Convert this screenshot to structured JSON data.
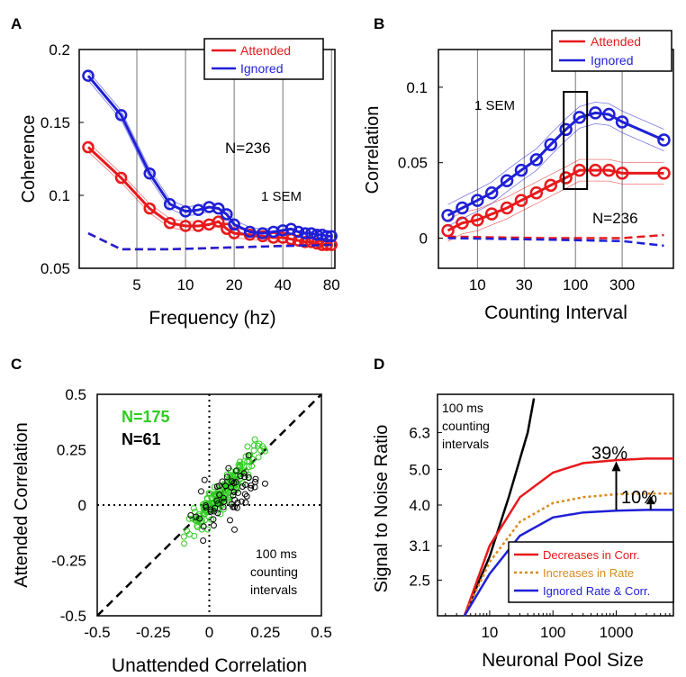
{
  "colors": {
    "attended": "#e8191c",
    "ignored": "#1f1fd6",
    "dashed_red": "#e8191c",
    "dashed_blue": "#1f1fd6",
    "green": "#2ecc1f",
    "orange": "#d98a1e",
    "black": "#000000"
  },
  "panels": {
    "A": {
      "letter": "A",
      "title": "",
      "xlabel": "Frequency (hz)",
      "ylabel": "Coherence",
      "annotation_n": "N=236",
      "annotation_sem": "1 SEM",
      "legend": [
        "Attended",
        "Ignored"
      ],
      "xticks": [
        "5",
        "10",
        "20",
        "40",
        "80"
      ],
      "yticks": [
        "0.05",
        "0.1",
        "0.15",
        "0.2"
      ]
    },
    "B": {
      "letter": "B",
      "xlabel": "Counting Interval",
      "ylabel": "Correlation",
      "annotation_n": "N=236",
      "annotation_sem": "1 SEM",
      "legend": [
        "Attended",
        "Ignored"
      ],
      "xticks": [
        "10",
        "30",
        "100",
        "300"
      ],
      "yticks": [
        "0",
        "0.05",
        "0.1"
      ]
    },
    "C": {
      "letter": "C",
      "xlabel": "Unattended Correlation",
      "ylabel": "Attended Correlation",
      "n_green": "N=175",
      "n_black": "N=61",
      "note_line1": "100 ms",
      "note_line2": "counting",
      "note_line3": "intervals",
      "xticks": [
        "-0.5",
        "-0.25",
        "0",
        "0.25",
        "0.5"
      ],
      "yticks": [
        "-0.5",
        "-0.25",
        "0",
        "0.25",
        "0.5"
      ]
    },
    "D": {
      "letter": "D",
      "xlabel": "Neuronal Pool Size",
      "ylabel": "Signal to Noise Ratio",
      "note_line1": "100 ms",
      "note_line2": "counting",
      "note_line3": "intervals",
      "pct1": "39%",
      "pct2": "10%",
      "legend": [
        "Decreases in Corr.",
        "Increases in Rate",
        "Ignored Rate & Corr."
      ],
      "xticks": [
        "10",
        "100",
        "1000"
      ],
      "yticks": [
        "2.5",
        "3.1",
        "4.0",
        "5.0",
        "6.3"
      ]
    }
  },
  "chart_data": [
    {
      "type": "line",
      "panel": "A",
      "xlabel": "Frequency (hz)",
      "ylabel": "Coherence",
      "xscale": "log",
      "xlim": [
        2.2,
        84
      ],
      "ylim": [
        0.05,
        0.2
      ],
      "series": [
        {
          "name": "Attended",
          "x": [
            2.5,
            4,
            6,
            8,
            10,
            12,
            14,
            16,
            18,
            20,
            25,
            30,
            35,
            40,
            45,
            50,
            55,
            60,
            65,
            70,
            75,
            80
          ],
          "values": [
            0.133,
            0.112,
            0.091,
            0.081,
            0.079,
            0.079,
            0.08,
            0.082,
            0.077,
            0.074,
            0.073,
            0.072,
            0.071,
            0.071,
            0.07,
            0.069,
            0.068,
            0.068,
            0.067,
            0.066,
            0.066,
            0.066
          ]
        },
        {
          "name": "Ignored",
          "x": [
            2.5,
            4,
            6,
            8,
            10,
            12,
            14,
            16,
            18,
            20,
            25,
            30,
            35,
            40,
            45,
            50,
            55,
            60,
            65,
            70,
            75,
            80
          ],
          "values": [
            0.182,
            0.155,
            0.115,
            0.094,
            0.089,
            0.09,
            0.092,
            0.091,
            0.087,
            0.08,
            0.075,
            0.074,
            0.075,
            0.076,
            0.077,
            0.075,
            0.074,
            0.074,
            0.073,
            0.073,
            0.072,
            0.072
          ]
        },
        {
          "name": "",
          "style": "dashed",
          "color": "red",
          "x": [
            2.5,
            4,
            8,
            16,
            32,
            80
          ],
          "values": [
            0.074,
            0.063,
            0.063,
            0.064,
            0.065,
            0.067
          ]
        },
        {
          "name": "",
          "style": "dashed",
          "color": "blue",
          "x": [
            2.5,
            4,
            8,
            16,
            32,
            80
          ],
          "values": [
            0.074,
            0.063,
            0.063,
            0.064,
            0.065,
            0.066
          ]
        }
      ]
    },
    {
      "type": "line",
      "panel": "B",
      "xlabel": "Counting Interval",
      "ylabel": "Correlation",
      "xscale": "log",
      "xlim": [
        4,
        1000
      ],
      "ylim": [
        -0.02,
        0.125
      ],
      "series": [
        {
          "name": "Attended",
          "x": [
            5,
            7,
            10,
            14,
            20,
            28,
            40,
            56,
            80,
            110,
            160,
            220,
            300,
            800
          ],
          "values": [
            0.005,
            0.01,
            0.012,
            0.016,
            0.02,
            0.025,
            0.03,
            0.035,
            0.04,
            0.045,
            0.045,
            0.045,
            0.043,
            0.043
          ]
        },
        {
          "name": "Ignored",
          "x": [
            5,
            7,
            10,
            14,
            20,
            28,
            40,
            56,
            80,
            110,
            160,
            220,
            300,
            800
          ],
          "values": [
            0.015,
            0.02,
            0.025,
            0.03,
            0.038,
            0.045,
            0.052,
            0.062,
            0.072,
            0.08,
            0.083,
            0.082,
            0.077,
            0.065
          ]
        },
        {
          "name": "",
          "style": "dashed",
          "color": "red",
          "x": [
            5,
            50,
            300,
            800
          ],
          "values": [
            0.001,
            0.0,
            0.0,
            0.002
          ]
        },
        {
          "name": "",
          "style": "dashed",
          "color": "blue",
          "x": [
            5,
            50,
            300,
            800
          ],
          "values": [
            0.0,
            -0.001,
            -0.002,
            -0.005
          ]
        }
      ]
    },
    {
      "type": "scatter",
      "panel": "C",
      "xlabel": "Unattended Correlation",
      "ylabel": "Attended Correlation",
      "xlim": [
        -0.5,
        0.5
      ],
      "ylim": [
        -0.5,
        0.5
      ],
      "series": [
        {
          "name": "N=175",
          "color": "green",
          "n": 175
        },
        {
          "name": "N=61",
          "color": "black",
          "n": 61
        }
      ]
    },
    {
      "type": "line",
      "panel": "D",
      "xlabel": "Neuronal Pool Size",
      "ylabel": "Signal to Noise Ratio",
      "xscale": "log",
      "yscale": "log",
      "xlim": [
        1.5,
        8000
      ],
      "ylim": [
        2.0,
        8.0
      ],
      "series": [
        {
          "name": "100 ms counting intervals",
          "color": "black",
          "x": [
            4,
            10,
            20,
            40,
            50
          ],
          "values": [
            2.0,
            2.9,
            4.2,
            6.3,
            7.8
          ]
        },
        {
          "name": "Decreases in Corr.",
          "color": "red",
          "x": [
            4,
            10,
            30,
            100,
            300,
            1000,
            3000,
            8000
          ],
          "values": [
            2.0,
            3.1,
            4.2,
            4.9,
            5.2,
            5.3,
            5.35,
            5.35
          ]
        },
        {
          "name": "Increases in Rate",
          "color": "orange",
          "x": [
            4,
            10,
            30,
            100,
            300,
            1000,
            3000,
            8000
          ],
          "values": [
            2.0,
            2.8,
            3.6,
            4.05,
            4.2,
            4.28,
            4.3,
            4.3
          ]
        },
        {
          "name": "Ignored Rate & Corr.",
          "color": "blue",
          "x": [
            4,
            10,
            30,
            100,
            300,
            1000,
            3000,
            8000
          ],
          "values": [
            2.0,
            2.6,
            3.3,
            3.7,
            3.82,
            3.86,
            3.88,
            3.88
          ]
        }
      ]
    }
  ]
}
